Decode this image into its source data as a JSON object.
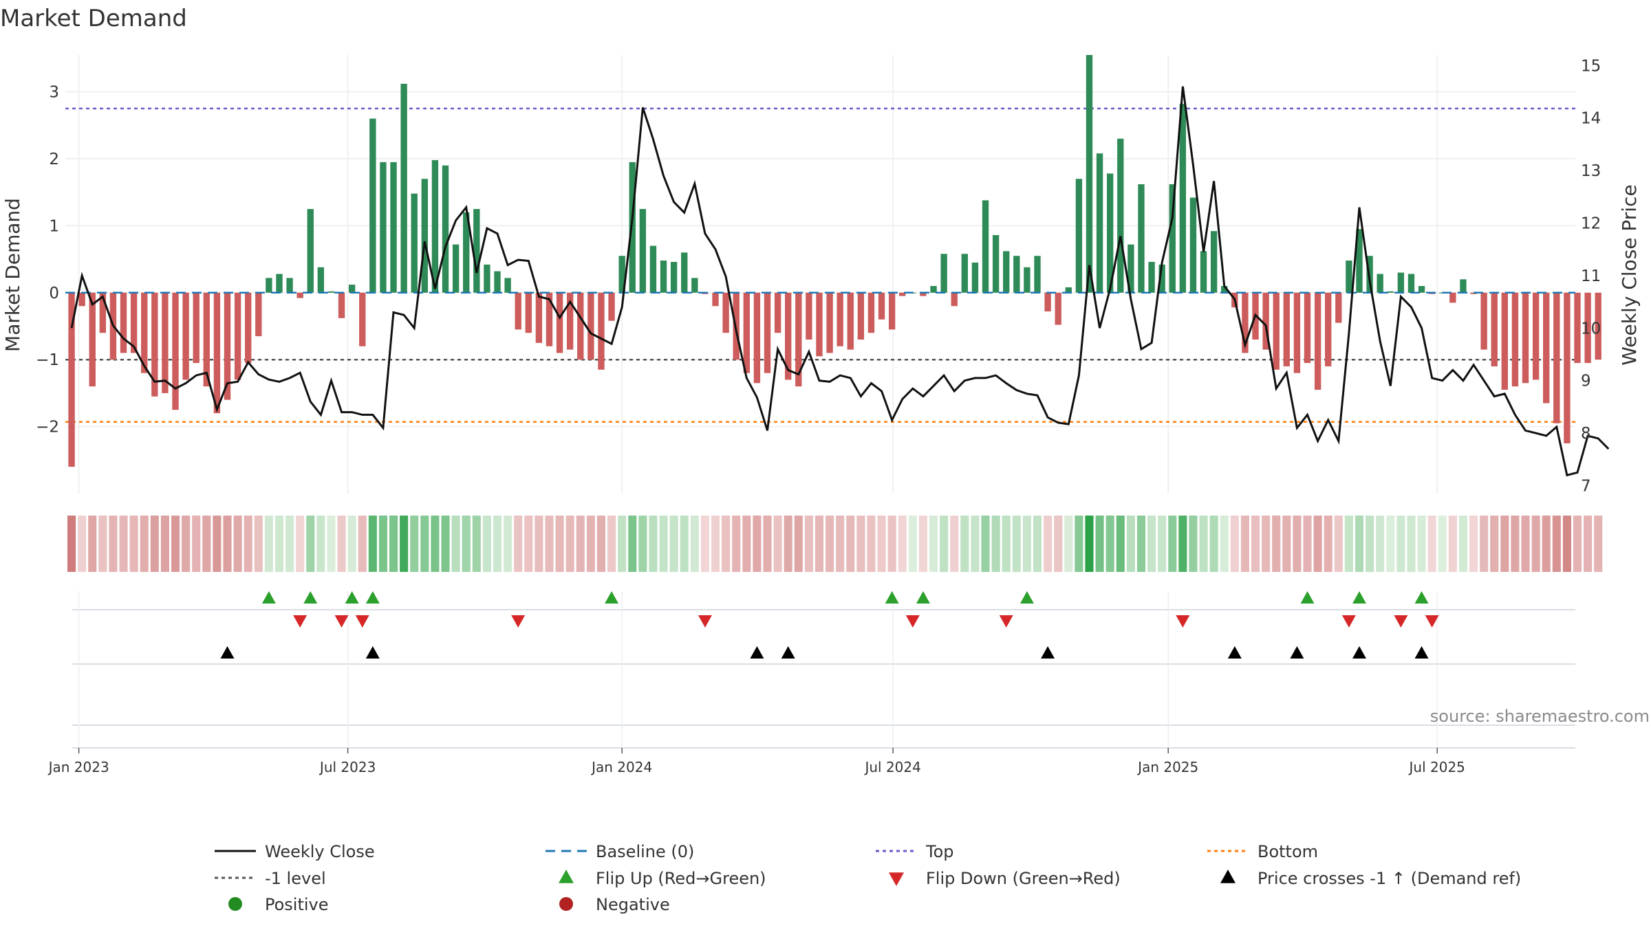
{
  "chart_data": {
    "type": "bar+line",
    "title": "Market Demand",
    "left_axis": {
      "label": "Market Demand",
      "ticks": [
        -2,
        -1,
        0,
        1,
        2,
        3
      ],
      "range": [
        -3.0,
        3.55
      ]
    },
    "right_axis": {
      "label": "Weekly Close Price",
      "ticks": [
        7,
        8,
        9,
        10,
        11,
        12,
        13,
        14,
        15
      ],
      "range": [
        6.85,
        15.2
      ]
    },
    "x_axis": {
      "range_weeks": [
        -0.6,
        144.8
      ],
      "ticks": [
        {
          "label": "Jan 2023",
          "week": 0.7
        },
        {
          "label": "Jul 2023",
          "week": 26.6
        },
        {
          "label": "Jan 2024",
          "week": 53.0
        },
        {
          "label": "Jul 2024",
          "week": 79.1
        },
        {
          "label": "Jan 2025",
          "week": 105.6
        },
        {
          "label": "Jul 2025",
          "week": 131.5
        }
      ]
    },
    "reference_lines": {
      "top": 2.75,
      "minus_one": -1.0,
      "bottom": -1.93,
      "baseline": 0
    },
    "demand": [
      -2.6,
      -0.2,
      -1.4,
      -0.6,
      -1.0,
      -0.9,
      -0.9,
      -1.2,
      -1.55,
      -1.5,
      -1.75,
      -1.3,
      -1.05,
      -1.4,
      -1.8,
      -1.6,
      -1.3,
      -1.05,
      -0.65,
      0.22,
      0.28,
      0.22,
      -0.08,
      1.25,
      0.38,
      0.02,
      -0.38,
      0.12,
      -0.8,
      2.6,
      1.95,
      1.95,
      3.12,
      1.48,
      1.7,
      1.98,
      1.9,
      0.72,
      1.2,
      1.25,
      0.42,
      0.32,
      0.22,
      -0.55,
      -0.6,
      -0.75,
      -0.8,
      -0.9,
      -0.85,
      -1.0,
      -1.0,
      -1.15,
      -0.42,
      0.55,
      1.95,
      1.25,
      0.7,
      0.48,
      0.46,
      0.6,
      0.22,
      -0.02,
      -0.2,
      -0.6,
      -1.0,
      -1.2,
      -1.35,
      -1.2,
      -0.6,
      -1.3,
      -1.4,
      -0.7,
      -0.95,
      -0.9,
      -0.8,
      -0.85,
      -0.7,
      -0.6,
      -0.4,
      -0.55,
      -0.05,
      0.0,
      -0.05,
      0.1,
      0.58,
      -0.2,
      0.58,
      0.45,
      1.38,
      0.86,
      0.62,
      0.55,
      0.38,
      0.55,
      -0.28,
      -0.48,
      0.08,
      1.7,
      3.55,
      2.08,
      1.78,
      2.3,
      0.72,
      1.62,
      0.46,
      0.42,
      1.62,
      2.82,
      1.42,
      0.62,
      0.92,
      0.1,
      -0.22,
      -0.9,
      -0.7,
      -0.85,
      -1.15,
      -1.1,
      -1.2,
      -1.05,
      -1.45,
      -1.1,
      -0.45,
      0.48,
      0.95,
      0.55,
      0.28,
      0.02,
      0.3,
      0.28,
      0.1,
      -0.02,
      0.0,
      -0.15,
      0.2,
      -0.02,
      -0.85,
      -1.1,
      -1.45,
      -1.4,
      -1.35,
      -1.3,
      -1.65,
      -1.95,
      -2.25,
      -1.05,
      -1.05,
      -1.0
    ],
    "weekly_close": [
      10.0,
      11.0,
      10.45,
      10.6,
      10.05,
      9.8,
      9.65,
      9.28,
      8.98,
      9.0,
      8.85,
      8.95,
      9.1,
      9.15,
      8.45,
      8.95,
      8.98,
      9.35,
      9.12,
      9.02,
      8.98,
      9.05,
      9.15,
      8.6,
      8.35,
      9.0,
      8.4,
      8.4,
      8.35,
      8.35,
      8.1,
      10.3,
      10.25,
      10.0,
      11.65,
      10.75,
      11.55,
      12.05,
      12.3,
      11.05,
      11.9,
      11.8,
      11.2,
      11.3,
      11.28,
      10.6,
      10.55,
      10.2,
      10.5,
      10.2,
      9.9,
      9.8,
      9.7,
      10.4,
      12.1,
      14.2,
      13.6,
      12.9,
      12.4,
      12.2,
      12.75,
      11.8,
      11.5,
      10.98,
      9.95,
      9.05,
      8.68,
      8.05,
      9.6,
      9.2,
      9.12,
      9.55,
      9.0,
      8.98,
      9.1,
      9.05,
      8.7,
      8.95,
      8.8,
      8.25,
      8.65,
      8.85,
      8.7,
      8.9,
      9.1,
      8.8,
      9.0,
      9.05,
      9.05,
      9.1,
      8.95,
      8.82,
      8.75,
      8.72,
      8.3,
      8.2,
      8.17,
      9.1,
      11.2,
      10.0,
      10.75,
      11.75,
      10.55,
      9.6,
      9.72,
      11.25,
      12.1,
      14.6,
      13.1,
      11.45,
      12.8,
      10.8,
      10.55,
      9.68,
      10.25,
      10.05,
      8.85,
      9.15,
      8.1,
      8.35,
      7.85,
      8.25,
      7.85,
      9.9,
      12.3,
      10.9,
      9.75,
      8.9,
      10.6,
      10.4,
      10.0,
      9.05,
      9.0,
      9.2,
      9.0,
      9.3,
      9.0,
      8.7,
      8.75,
      8.35,
      8.05,
      8.0,
      7.95,
      8.12,
      7.2,
      7.25,
      7.95,
      7.9,
      7.7
    ],
    "flip_up_weeks": [
      19,
      23,
      27,
      29,
      52,
      79,
      82,
      92,
      119,
      124,
      130
    ],
    "flip_down_weeks": [
      22,
      26,
      28,
      43,
      61,
      81,
      90,
      107,
      123,
      128,
      131
    ],
    "price_cross_up_weeks": [
      15,
      29,
      66,
      69,
      94,
      112,
      118,
      124,
      130
    ],
    "colors": {
      "positive_bar": "#2e8b57",
      "negative_bar": "#cd5c5c",
      "close_line": "#111111",
      "baseline": "#1f77b4",
      "top": "#6a5acd",
      "minus_one": "#555555",
      "bottom": "#ff7f0e",
      "flip_up": "#2ca02c",
      "flip_down": "#d62728",
      "cross_up": "#000000",
      "positive_dot": "#228b22",
      "negative_dot": "#b22222"
    },
    "source": "source: sharemaestro.com"
  },
  "legend": [
    {
      "label": "Weekly Close",
      "icon": "solid-line"
    },
    {
      "label": "Baseline (0)",
      "icon": "dash-line"
    },
    {
      "label": "Top",
      "icon": "dotted-line"
    },
    {
      "label": "Bottom",
      "icon": "dotted-line"
    },
    {
      "label": "-1 level",
      "icon": "dotted-line"
    },
    {
      "label": "Flip Up (Red→Green)",
      "icon": "triangle-up"
    },
    {
      "label": "Flip Down (Green→Red)",
      "icon": "triangle-down"
    },
    {
      "label": "Price crosses -1 ↑ (Demand ref)",
      "icon": "triangle-up"
    },
    {
      "label": "Positive",
      "icon": "circle"
    },
    {
      "label": "Negative",
      "icon": "circle"
    }
  ]
}
